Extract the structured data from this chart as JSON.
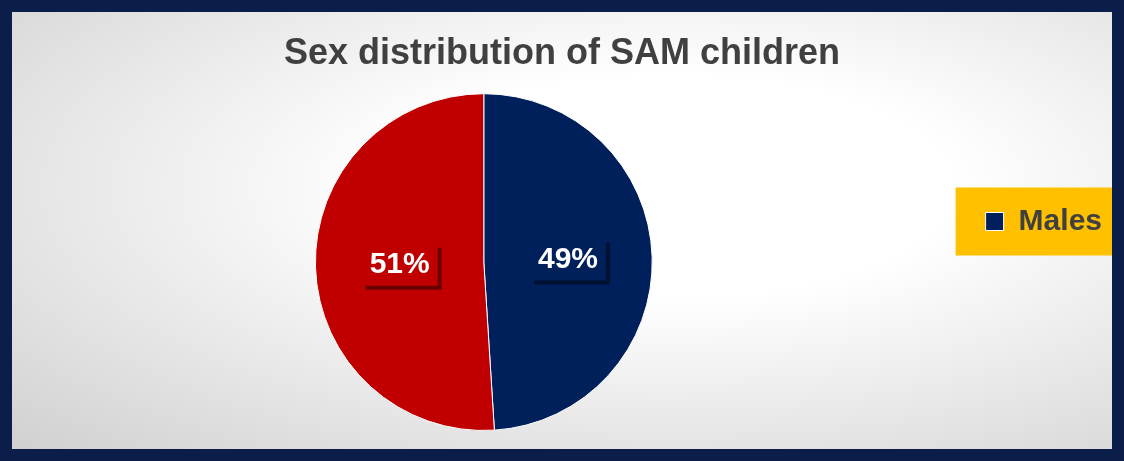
{
  "chart_data": {
    "type": "pie",
    "title": "Sex distribution of SAM children",
    "categories": [
      "Males",
      null
    ],
    "values": [
      49,
      51
    ],
    "colors": [
      "#00205b",
      "#c00000"
    ],
    "value_labels": [
      "49%",
      "51%"
    ],
    "legend": "right"
  }
}
